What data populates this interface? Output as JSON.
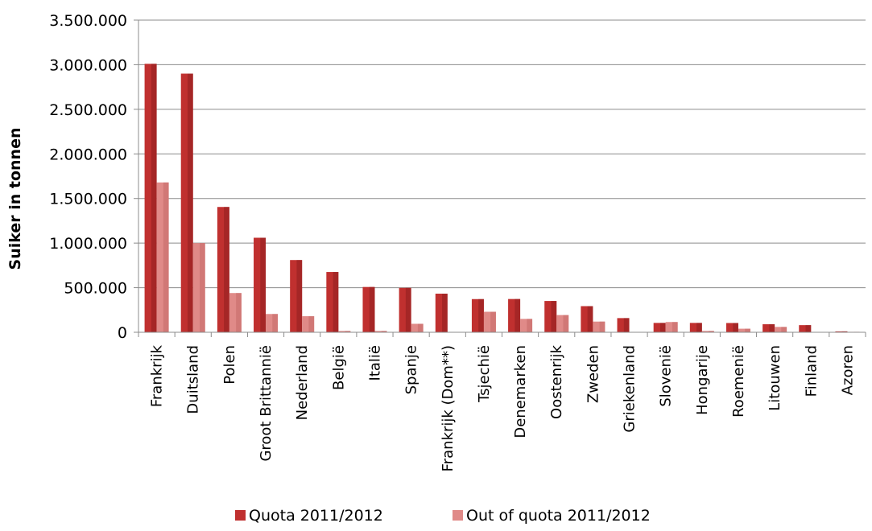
{
  "chart_data": {
    "type": "bar",
    "ylabel": "Suiker in tonnen",
    "xlabel": "",
    "ylim": [
      0,
      3500000
    ],
    "y_ticks": [
      0,
      500000,
      1000000,
      1500000,
      2000000,
      2500000,
      3000000,
      3500000
    ],
    "y_tick_labels": [
      "0",
      "500.000",
      "1.000.000",
      "1.500.000",
      "2.000.000",
      "2.500.000",
      "3.000.000",
      "3.500.000"
    ],
    "grid": true,
    "legend_position": "bottom",
    "categories": [
      "Frankrijk",
      "Duitsland",
      "Polen",
      "Groot Brittannië",
      "Nederland",
      "België",
      "Italië",
      "Spanje",
      "Frankrijk (Dom**)",
      "Tsjechië",
      "Denemarken",
      "Oostenrijk",
      "Zweden",
      "Griekenland",
      "Slovenië",
      "Hongarije",
      "Roemenië",
      "Litouwen",
      "Finland",
      "Azoren"
    ],
    "series": [
      {
        "name": "Quota 2011/2012",
        "color": "#c0302f",
        "values": [
          3010000,
          2900000,
          1405000,
          1060000,
          810000,
          676000,
          508000,
          498000,
          433000,
          372000,
          373000,
          351000,
          293000,
          159000,
          105000,
          105000,
          104000,
          90000,
          80000,
          10000
        ]
      },
      {
        "name": "Out of quota 2011/2012",
        "color": "#e08a88",
        "values": [
          1680000,
          1000000,
          440000,
          205000,
          180000,
          15000,
          15000,
          95000,
          0,
          230000,
          150000,
          193000,
          120000,
          0,
          115000,
          15000,
          40000,
          60000,
          0,
          5000
        ]
      }
    ]
  }
}
